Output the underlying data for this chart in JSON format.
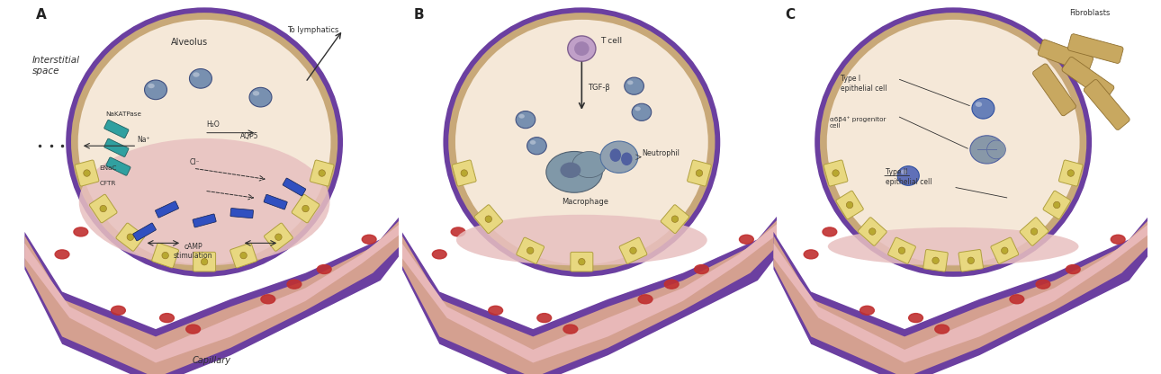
{
  "bg_color": "#ffffff",
  "alv_border_color": "#6b3fa0",
  "alv_wall_color": "#c8a878",
  "alv_interior_color": "#f5e8d8",
  "alv_fluid_color": "#e8c0c0",
  "cap_outer_color": "#6b3fa0",
  "cap_wall_color": "#d4a090",
  "cap_lumen_color": "#e8b8b8",
  "rbc_color": "#c03030",
  "cell_fill": "#e8d880",
  "cell_edge": "#b0a040",
  "cell_dot": "#c8b840",
  "teal_color": "#30a0a0",
  "blue_color": "#3050c0",
  "vesicle_fill": "#8090b8",
  "vesicle_edge": "#4060a0",
  "tcell_fill": "#c0a0c8",
  "tcell_edge": "#806090",
  "macro_fill": "#8098a8",
  "macro_edge": "#506070",
  "neutro_fill": "#90a0b0",
  "neutro_edge": "#5070a0",
  "fibro_fill": "#c8a860",
  "fibro_edge": "#907030",
  "text_color": "#303030",
  "labels_A": {
    "interstitial_space": "Interstitial\nspace",
    "alveolus": "Alveolus",
    "to_lymphatics": "To lymphatics",
    "nakatpase": "NaKATPase",
    "h2o": "H₂O",
    "aqp5": "AQP5",
    "na": "Na⁺",
    "cl": "Cl⁻",
    "enac": "ENaC",
    "cftr": "CFTR",
    "camp": "cAMP\nstimulation",
    "capillary": "Capillary"
  },
  "labels_B": {
    "tcell": "T cell",
    "tgfb": "TGF-β",
    "neutrophil": "Neutrophil",
    "macrophage": "Macrophage"
  },
  "labels_C": {
    "fibroblasts": "Fibroblasts",
    "typeI": "Type I\nepithelial cell",
    "progenitor": "α6β4⁺ progenitor\ncell",
    "typeII": "Type II\nepithelial cell"
  }
}
